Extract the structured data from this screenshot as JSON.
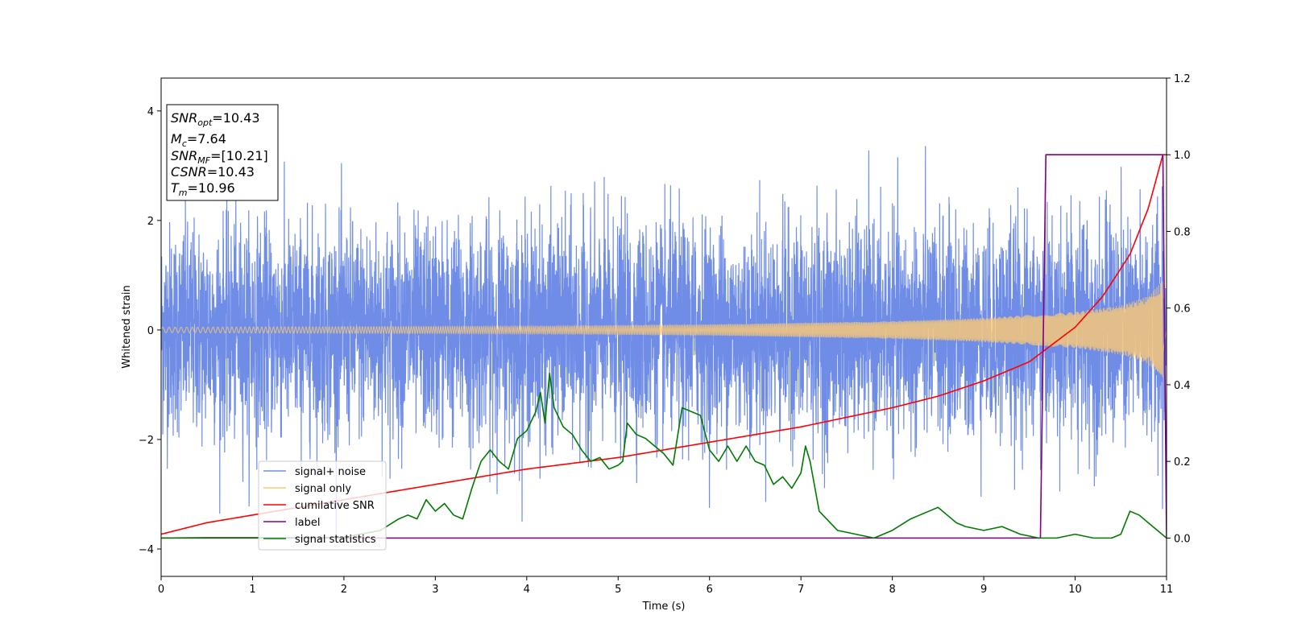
{
  "chart_data": {
    "type": "line",
    "title": "",
    "xlabel": "Time (s)",
    "ylabel": "Whitened strain",
    "xlim": [
      0,
      11
    ],
    "ylim_left": [
      -4.5,
      4.6
    ],
    "ylim_right": [
      -0.1,
      1.2
    ],
    "x_ticks": [
      "0",
      "1",
      "2",
      "3",
      "4",
      "5",
      "6",
      "7",
      "8",
      "9",
      "10",
      "11"
    ],
    "y_ticks_left": [
      "−4",
      "−2",
      "0",
      "2",
      "4"
    ],
    "y_ticks_right": [
      "0.0",
      "0.2",
      "0.4",
      "0.6",
      "0.8",
      "1.0",
      "1.2"
    ],
    "grid": false,
    "legend_position": "lower-left",
    "annotation": {
      "lines": [
        {
          "base": "SNR",
          "sub": "opt",
          "value": "=10.43"
        },
        {
          "base": "M",
          "sub": "c",
          "value": "=7.64"
        },
        {
          "base": "SNR",
          "sub": "MF",
          "value": "=[10.21]"
        },
        {
          "base": "CSNR",
          "sub": "",
          "value": "=10.43"
        },
        {
          "base": "T",
          "sub": "m",
          "value": "=10.96"
        }
      ]
    },
    "series": [
      {
        "name": "signal+ noise",
        "axis": "left",
        "color": "#6f8de6",
        "description_values": {
          "noise_std": 0.95,
          "peak_max": 4.15,
          "peak_min": -4.1
        }
      },
      {
        "name": "signal only",
        "axis": "left",
        "color": "#f7c77a",
        "amplitude_envelope": {
          "x": [
            0,
            2,
            4,
            6,
            8,
            9,
            10,
            10.5,
            10.8,
            10.96
          ],
          "y": [
            0.05,
            0.06,
            0.07,
            0.1,
            0.16,
            0.22,
            0.33,
            0.45,
            0.62,
            0.9
          ]
        }
      },
      {
        "name": "cumilative SNR",
        "axis": "right",
        "color": "#ff0000",
        "x": [
          0,
          0.5,
          1,
          2,
          3,
          4,
          5,
          6,
          7,
          8,
          8.5,
          9,
          9.5,
          10,
          10.3,
          10.6,
          10.8,
          10.96,
          11.0
        ],
        "y": [
          0.01,
          0.04,
          0.06,
          0.1,
          0.14,
          0.18,
          0.21,
          0.25,
          0.29,
          0.34,
          0.37,
          0.41,
          0.46,
          0.55,
          0.63,
          0.74,
          0.86,
          1.0,
          1.0
        ]
      },
      {
        "name": "label",
        "axis": "right",
        "color": "#800080",
        "x": [
          0,
          9.62,
          9.68,
          10.94,
          10.96,
          11.0
        ],
        "y": [
          0,
          0,
          1.0,
          1.0,
          1.0,
          0
        ]
      },
      {
        "name": "signal statistics",
        "axis": "right",
        "color": "#007a00",
        "x": [
          0,
          0.5,
          1,
          1.5,
          2,
          2.4,
          2.6,
          2.7,
          2.8,
          2.9,
          3.0,
          3.1,
          3.2,
          3.3,
          3.4,
          3.5,
          3.6,
          3.7,
          3.8,
          3.9,
          4.0,
          4.1,
          4.15,
          4.2,
          4.25,
          4.3,
          4.4,
          4.5,
          4.6,
          4.7,
          4.8,
          4.9,
          5.0,
          5.05,
          5.1,
          5.2,
          5.3,
          5.4,
          5.5,
          5.6,
          5.7,
          5.8,
          5.9,
          6.0,
          6.1,
          6.2,
          6.3,
          6.4,
          6.5,
          6.6,
          6.7,
          6.8,
          6.9,
          7.0,
          7.05,
          7.1,
          7.2,
          7.4,
          7.6,
          7.8,
          8.0,
          8.2,
          8.3,
          8.4,
          8.5,
          8.6,
          8.7,
          8.8,
          9.0,
          9.2,
          9.4,
          9.6,
          9.8,
          10.0,
          10.2,
          10.4,
          10.5,
          10.6,
          10.7,
          10.8,
          10.9,
          11.0
        ],
        "y": [
          0,
          0.001,
          0.001,
          0.001,
          0.002,
          0.02,
          0.05,
          0.06,
          0.05,
          0.1,
          0.07,
          0.09,
          0.06,
          0.05,
          0.13,
          0.2,
          0.23,
          0.2,
          0.18,
          0.26,
          0.28,
          0.33,
          0.38,
          0.3,
          0.43,
          0.34,
          0.29,
          0.27,
          0.23,
          0.2,
          0.21,
          0.18,
          0.19,
          0.2,
          0.3,
          0.27,
          0.26,
          0.24,
          0.22,
          0.19,
          0.34,
          0.33,
          0.32,
          0.23,
          0.2,
          0.24,
          0.2,
          0.24,
          0.2,
          0.19,
          0.14,
          0.16,
          0.13,
          0.17,
          0.24,
          0.2,
          0.07,
          0.02,
          0.01,
          0.0,
          0.02,
          0.05,
          0.06,
          0.07,
          0.08,
          0.06,
          0.04,
          0.03,
          0.02,
          0.03,
          0.01,
          0.0,
          0.0,
          0.01,
          0.0,
          0.0,
          0.01,
          0.07,
          0.06,
          0.04,
          0.02,
          0.0
        ]
      }
    ]
  }
}
